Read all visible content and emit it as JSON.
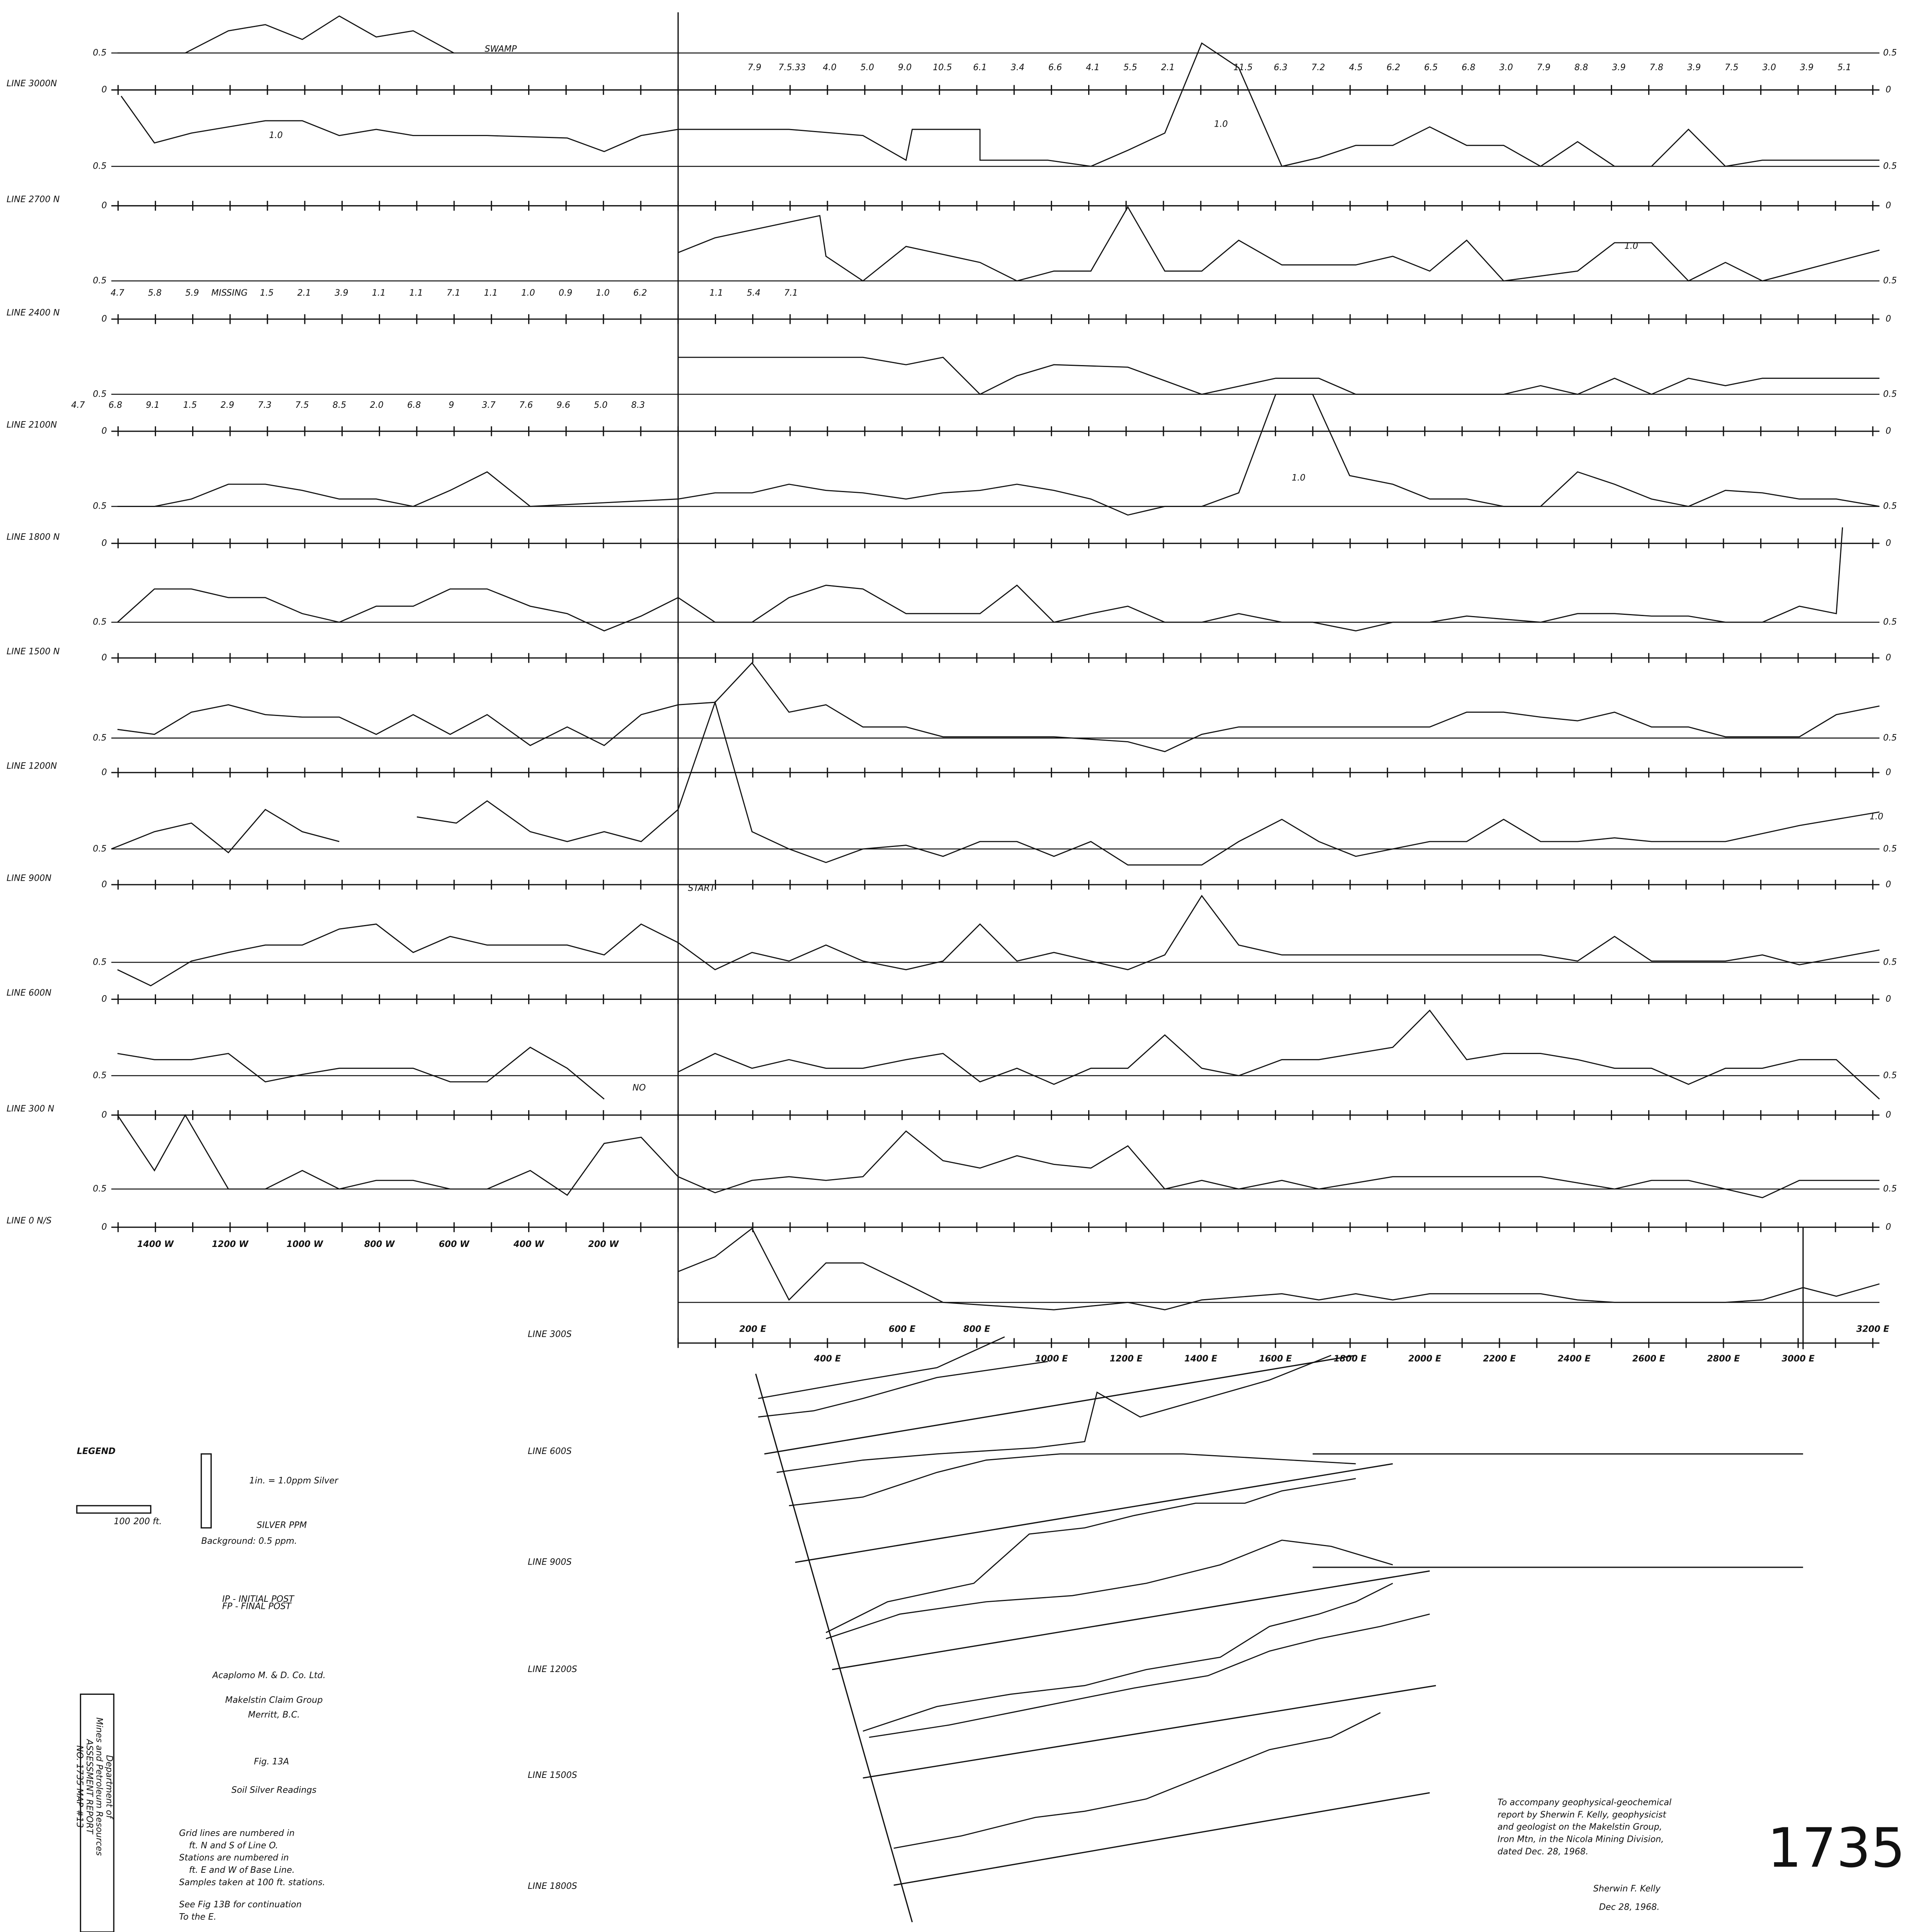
{
  "line_labels_north": [
    "LINE 3000N",
    "LINE 2700 N",
    "LINE 2400 N",
    "LINE 2100N",
    "LINE 1800 N",
    "LINE 1500 N",
    "LINE 1200N",
    "LINE 900N",
    "LINE 600N",
    "LINE 300 N",
    "LINE 0 N/S"
  ],
  "line_labels_south": [
    "LINE 300S",
    "LINE 600S",
    "LINE 900S",
    "LINE 1200S",
    "LINE 1500S",
    "LINE 1800S"
  ],
  "station_labels": [
    "1400 W",
    "1200 W",
    "1000 W",
    "800 W",
    "600 W",
    "400 W",
    "200 W",
    "200 E",
    "400 E",
    "600 E",
    "800 E",
    "1000 E",
    "1200 E",
    "1400 E",
    "1600 E",
    "1800 E",
    "2000 E",
    "2200 E",
    "2400 E",
    "2600 E",
    "2800 E",
    "3000 E",
    "3200 E"
  ],
  "levels": [
    "0.5",
    "0",
    "1.0"
  ],
  "readings_3000n": [
    "7.9",
    "7.5.33",
    "4.0",
    "5.0",
    "9.0",
    "10.5",
    "6.1",
    "3.4",
    "6.6",
    "4.1",
    "5.5",
    "2.1",
    "",
    "11.5",
    "6.3",
    "7.2",
    "4.5",
    "6.2",
    "6.5",
    "6.8",
    "3.0",
    "7.9",
    "8.8",
    "3.9",
    "7.8",
    "3.9",
    "7.5",
    "3.0",
    "3.9",
    "5.1"
  ],
  "readings_2400n_west": [
    "4.7",
    "5.8",
    "5.9",
    "MISSING",
    "1.5",
    "2.1",
    "3.9",
    "1.1",
    "1.1",
    "7.1",
    "1.1",
    "1.0",
    "0.9",
    "1.0",
    "6.2"
  ],
  "readings_2400n_east": [
    "1.1",
    "5.4",
    "7.1"
  ],
  "readings_2100n": [
    "4.7",
    "6.8",
    "9.1",
    "1.5",
    "2.9",
    "7.3",
    "7.5",
    "8.5",
    "2.0",
    "6.8",
    "9",
    "3.7",
    "7.6",
    "9.6",
    "5.0",
    "8.3"
  ],
  "legend": {
    "title": "LEGEND",
    "scale_note": "1in. = 1.0ppm Silver",
    "axis_label": "SILVER PPM",
    "background": "Background: 0.5 ppm.",
    "scale_bar": [
      "100",
      "200 ft."
    ],
    "symbols": [
      "IP - INITIAL POST",
      "FP - FINAL POST"
    ]
  },
  "title_block": {
    "company": "Acaplomo M. & D. Co. Ltd.",
    "subtitle": [
      "Makelstin Claim Group",
      "Merritt, B.C."
    ],
    "figure": "Fig. 13A",
    "heading": "Soil Silver Readings",
    "notes": [
      "Grid lines are numbered in",
      "ft. N and S of Line O.",
      "Stations are numbered in",
      "ft. E and W of Base Line.",
      "Samples taken at 100 ft. stations.",
      "See Fig 13B for continuation",
      "To the E."
    ]
  },
  "certification": {
    "lines": [
      "To accompany geophysical-geochemical",
      "report by Sherwin F. Kelly, geophysicist",
      "and geologist on the Makelstin Group,",
      "Iron Mtn, in the Nicola Mining Division,",
      "dated Dec. 28, 1968."
    ],
    "signature": "Sherwin F. Kelly",
    "signature_date": "Dec 28, 1968."
  },
  "report_number": "1735",
  "stamp": [
    "Department of",
    "Mines and Petroleum Resources",
    "ASSESSMENT REPORT",
    "NO. 1735 MAP #13"
  ],
  "annotations": {
    "swamp": "SWAMP",
    "start": "START",
    "no_sample": "NO"
  }
}
